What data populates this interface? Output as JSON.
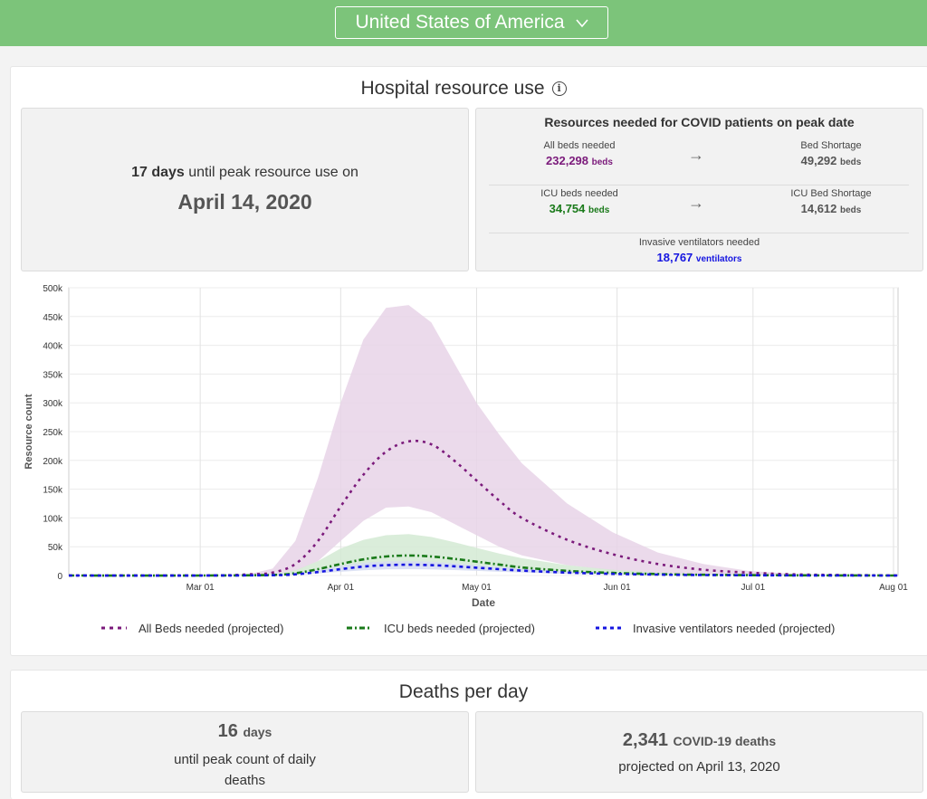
{
  "location": {
    "selected": "United States of America"
  },
  "hospital": {
    "title": "Hospital resource use",
    "peak_days_value": "17",
    "peak_days_unit": "days",
    "peak_days_text": "until peak resource use on",
    "peak_date": "April 14, 2020",
    "resources_title": "Resources needed for COVID patients on peak date",
    "all_beds_label": "All beds needed",
    "all_beds_value": "232,298",
    "beds_unit": "beds",
    "bed_shortage_label": "Bed Shortage",
    "bed_shortage_value": "49,292",
    "icu_label": "ICU beds needed",
    "icu_value": "34,754",
    "icu_shortage_label": "ICU Bed Shortage",
    "icu_shortage_value": "14,612",
    "vent_label": "Invasive ventilators needed",
    "vent_value": "18,767",
    "vent_unit": "ventilators",
    "arrow_glyph": "→"
  },
  "chart_data": {
    "type": "line",
    "xlabel": "Date",
    "ylabel": "Resource count",
    "x_ticks": [
      "Mar 01",
      "Apr 01",
      "May 01",
      "Jun 01",
      "Jul 01",
      "Aug 01"
    ],
    "x_tick_days": [
      29,
      60,
      90,
      121,
      151,
      182
    ],
    "x_range_days": [
      0,
      183
    ],
    "y_ticks": [
      "0",
      "50k",
      "100k",
      "150k",
      "200k",
      "250k",
      "300k",
      "350k",
      "400k",
      "450k",
      "500k"
    ],
    "ylim": [
      0,
      500000
    ],
    "grid": true,
    "legend_position": "bottom",
    "series": [
      {
        "name": "All Beds needed (projected)",
        "color": "#7b1a7b",
        "band_color": "#e8d3e8",
        "days": [
          0,
          30,
          40,
          45,
          50,
          55,
          60,
          65,
          70,
          75,
          80,
          85,
          90,
          95,
          100,
          110,
          120,
          130,
          140,
          150,
          160,
          170,
          183
        ],
        "values": [
          0,
          0,
          2000,
          5000,
          20000,
          60000,
          120000,
          175000,
          215000,
          233000,
          228000,
          200000,
          165000,
          130000,
          100000,
          62000,
          37000,
          20000,
          10000,
          5000,
          2000,
          1000,
          0
        ],
        "upper": [
          0,
          0,
          3000,
          12000,
          60000,
          170000,
          300000,
          410000,
          465000,
          470000,
          440000,
          370000,
          300000,
          245000,
          195000,
          125000,
          75000,
          40000,
          20000,
          8000,
          3000,
          1000,
          0
        ],
        "lower": [
          0,
          0,
          1000,
          2000,
          8000,
          25000,
          60000,
          95000,
          118000,
          120000,
          110000,
          90000,
          70000,
          50000,
          35000,
          18000,
          9000,
          4000,
          2000,
          1000,
          0,
          0,
          0
        ]
      },
      {
        "name": "ICU beds needed (projected)",
        "color": "#1a7a1a",
        "band_color": "#d4ead4",
        "days": [
          0,
          30,
          45,
          50,
          55,
          60,
          65,
          70,
          75,
          80,
          85,
          90,
          95,
          100,
          110,
          120,
          130,
          140,
          160,
          183
        ],
        "values": [
          0,
          0,
          1000,
          4000,
          11000,
          20000,
          28000,
          33000,
          34754,
          33000,
          29000,
          24000,
          19000,
          14000,
          8000,
          4500,
          2500,
          1200,
          300,
          0
        ],
        "upper": [
          0,
          0,
          2000,
          9000,
          25000,
          47000,
          62000,
          70000,
          72000,
          67000,
          58000,
          48000,
          38000,
          30000,
          18000,
          10000,
          5000,
          2500,
          600,
          0
        ],
        "lower": [
          0,
          0,
          500,
          2000,
          6000,
          11000,
          15000,
          17000,
          17500,
          16000,
          14000,
          11000,
          8500,
          6500,
          3500,
          1800,
          900,
          400,
          100,
          0
        ]
      },
      {
        "name": "Invasive ventilators needed (projected)",
        "color": "#1515e0",
        "band_color": "#d6dcf2",
        "days": [
          0,
          30,
          45,
          50,
          55,
          60,
          65,
          70,
          75,
          80,
          85,
          90,
          95,
          100,
          110,
          120,
          130,
          140,
          160,
          183
        ],
        "values": [
          0,
          0,
          500,
          2000,
          6000,
          11000,
          15500,
          18000,
          18767,
          18000,
          16000,
          13500,
          11000,
          8500,
          5000,
          2800,
          1500,
          800,
          200,
          0
        ],
        "upper": [
          0,
          0,
          1000,
          4000,
          10000,
          17000,
          22000,
          24500,
          25000,
          24000,
          21000,
          18000,
          15000,
          12000,
          7000,
          4000,
          2200,
          1100,
          300,
          0
        ],
        "lower": [
          0,
          0,
          300,
          1200,
          3500,
          6500,
          9000,
          10500,
          11000,
          10500,
          9500,
          8000,
          6500,
          5000,
          2900,
          1600,
          900,
          450,
          100,
          0
        ]
      }
    ]
  },
  "deaths": {
    "title": "Deaths per day",
    "peak_days_value": "16",
    "peak_days_unit": "days",
    "peak_days_text1": "until peak count of daily",
    "peak_days_text2": "deaths",
    "peak_value": "2,341",
    "peak_unit": "COVID-19 deaths",
    "peak_text": "projected on April 13, 2020"
  }
}
